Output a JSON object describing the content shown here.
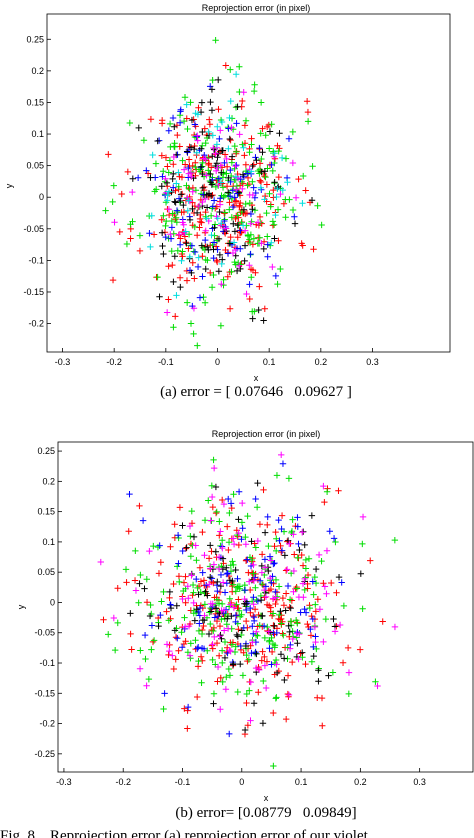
{
  "chart_data": [
    {
      "type": "scatter",
      "title": "Reprojection error (in pixel)",
      "xlabel": "x",
      "ylabel": "y",
      "xlim": [
        -0.33,
        0.45
      ],
      "ylim": [
        -0.245,
        0.29
      ],
      "xticks": [
        -0.3,
        -0.2,
        -0.1,
        0,
        0.1,
        0.2,
        0.3
      ],
      "yticks": [
        -0.2,
        -0.15,
        -0.1,
        -0.05,
        0,
        0.05,
        0.1,
        0.15,
        0.2,
        0.25
      ],
      "marker": "+",
      "grid": false,
      "colors": [
        "#ff0000",
        "#00dd00",
        "#0000ff",
        "#000000",
        "#ff00ff",
        "#00dddd"
      ],
      "series": [
        {
          "color": "#ff0000",
          "count": 240,
          "sigma": [
            0.075,
            0.09
          ],
          "seed": 11
        },
        {
          "color": "#00dd00",
          "count": 220,
          "sigma": [
            0.08,
            0.095
          ],
          "seed": 23
        },
        {
          "color": "#0000ff",
          "count": 90,
          "sigma": [
            0.065,
            0.085
          ],
          "seed": 37
        },
        {
          "color": "#000000",
          "count": 110,
          "sigma": [
            0.07,
            0.09
          ],
          "seed": 41
        },
        {
          "color": "#ff00ff",
          "count": 70,
          "sigma": [
            0.075,
            0.09
          ],
          "seed": 53
        },
        {
          "color": "#00dddd",
          "count": 50,
          "sigma": [
            0.075,
            0.09
          ],
          "seed": 67
        }
      ],
      "caption": "(a) error = [ 0.07646   0.09627 ]"
    },
    {
      "type": "scatter",
      "title": "Reprojection error (in pixel)",
      "xlabel": "x",
      "ylabel": "y",
      "xlim": [
        -0.31,
        0.39
      ],
      "ylim": [
        -0.28,
        0.265
      ],
      "xticks": [
        -0.3,
        -0.2,
        -0.1,
        0,
        0.1,
        0.2,
        0.3
      ],
      "yticks": [
        -0.25,
        -0.2,
        -0.15,
        -0.1,
        -0.05,
        0,
        0.05,
        0.1,
        0.15,
        0.2,
        0.25
      ],
      "marker": "+",
      "grid": false,
      "colors": [
        "#ff0000",
        "#00dd00",
        "#0000ff",
        "#000000",
        "#ff00ff"
      ],
      "series": [
        {
          "color": "#ff0000",
          "count": 250,
          "sigma": [
            0.085,
            0.095
          ],
          "seed": 101
        },
        {
          "color": "#00dd00",
          "count": 220,
          "sigma": [
            0.09,
            0.1
          ],
          "seed": 113
        },
        {
          "color": "#0000ff",
          "count": 110,
          "sigma": [
            0.08,
            0.095
          ],
          "seed": 127
        },
        {
          "color": "#000000",
          "count": 100,
          "sigma": [
            0.085,
            0.095
          ],
          "seed": 131
        },
        {
          "color": "#ff00ff",
          "count": 110,
          "sigma": [
            0.09,
            0.1
          ],
          "seed": 149
        }
      ],
      "caption": "(b) error= [0.08779   0.09849]"
    }
  ],
  "figure_caption_fragment": "Fig. 8.   Reprojection error (a) reprojection error of our violet ..."
}
